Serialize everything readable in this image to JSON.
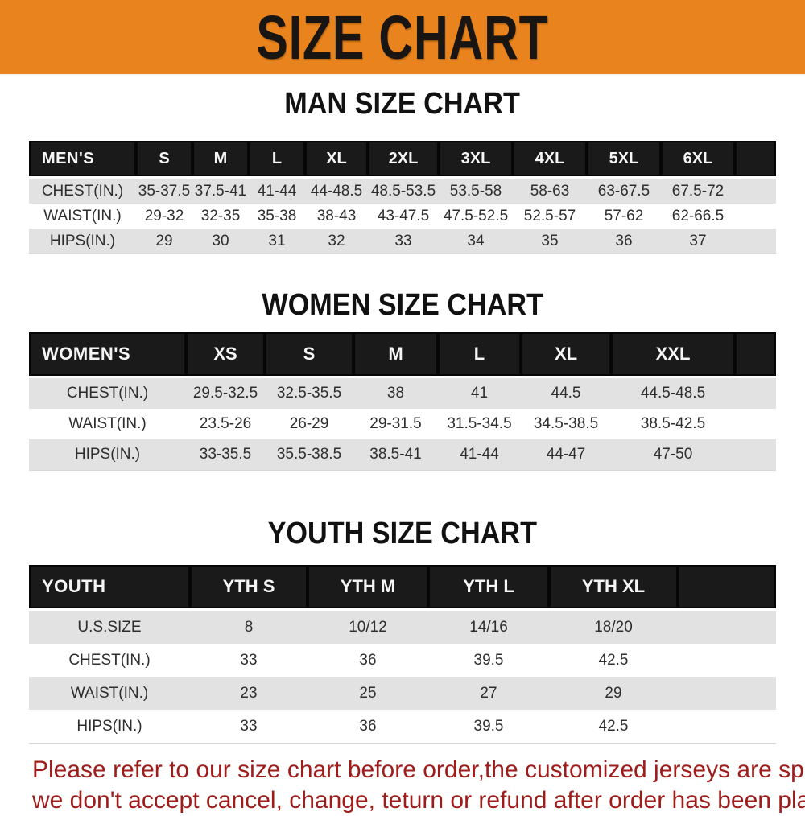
{
  "banner": {
    "title": "SIZE CHART"
  },
  "colors": {
    "banner_orange": "#E8831D",
    "banner_text": "#181512",
    "table_header_black": "#1a1a1a",
    "row_stripe_gray": "#E2E2E2",
    "footer_red": "#9E1C1A"
  },
  "sections": [
    {
      "id": "men",
      "heading": "MAN SIZE CHART",
      "table": {
        "header": [
          "MEN'S",
          "S",
          "M",
          "L",
          "XL",
          "2XL",
          "3XL",
          "4XL",
          "5XL",
          "6XL"
        ],
        "rows": [
          {
            "label": "CHEST(IN.)",
            "values": [
              "35-37.5",
              "37.5-41",
              "41-44",
              "44-48.5",
              "48.5-53.5",
              "53.5-58",
              "58-63",
              "63-67.5",
              "67.5-72"
            ]
          },
          {
            "label": "WAIST(IN.)",
            "values": [
              "29-32",
              "32-35",
              "35-38",
              "38-43",
              "43-47.5",
              "47.5-52.5",
              "52.5-57",
              "57-62",
              "62-66.5"
            ]
          },
          {
            "label": "HIPS(IN.)",
            "values": [
              "29",
              "30",
              "31",
              "32",
              "33",
              "34",
              "35",
              "36",
              "37"
            ]
          }
        ]
      }
    },
    {
      "id": "women",
      "heading": "WOMEN SIZE CHART",
      "table": {
        "header": [
          "WOMEN'S",
          "XS",
          "S",
          "M",
          "L",
          "XL",
          "XXL"
        ],
        "rows": [
          {
            "label": "CHEST(IN.)",
            "values": [
              "29.5-32.5",
              "32.5-35.5",
              "38",
              "41",
              "44.5",
              "44.5-48.5"
            ]
          },
          {
            "label": "WAIST(IN.)",
            "values": [
              "23.5-26",
              "26-29",
              "29-31.5",
              "31.5-34.5",
              "34.5-38.5",
              "38.5-42.5"
            ]
          },
          {
            "label": "HIPS(IN.)",
            "values": [
              "33-35.5",
              "35.5-38.5",
              "38.5-41",
              "41-44",
              "44-47",
              "47-50"
            ]
          }
        ]
      }
    },
    {
      "id": "youth",
      "heading": "YOUTH SIZE CHART",
      "table": {
        "header": [
          "YOUTH",
          "YTH S",
          "YTH M",
          "YTH L",
          "YTH XL"
        ],
        "rows": [
          {
            "label": "U.S.SIZE",
            "values": [
              "8",
              "10/12",
              "14/16",
              "18/20"
            ]
          },
          {
            "label": "CHEST(IN.)",
            "values": [
              "33",
              "36",
              "39.5",
              "42.5"
            ]
          },
          {
            "label": "WAIST(IN.)",
            "values": [
              "23",
              "25",
              "27",
              "29"
            ]
          },
          {
            "label": "HIPS(IN.)",
            "values": [
              "33",
              "36",
              "39.5",
              "42.5"
            ]
          }
        ]
      }
    }
  ],
  "footer": {
    "lines": [
      "Please refer to our size chart before order,the customized jerseys are special products,",
      "we don't accept cancel, change, teturn or refund after order has been placed!"
    ]
  }
}
